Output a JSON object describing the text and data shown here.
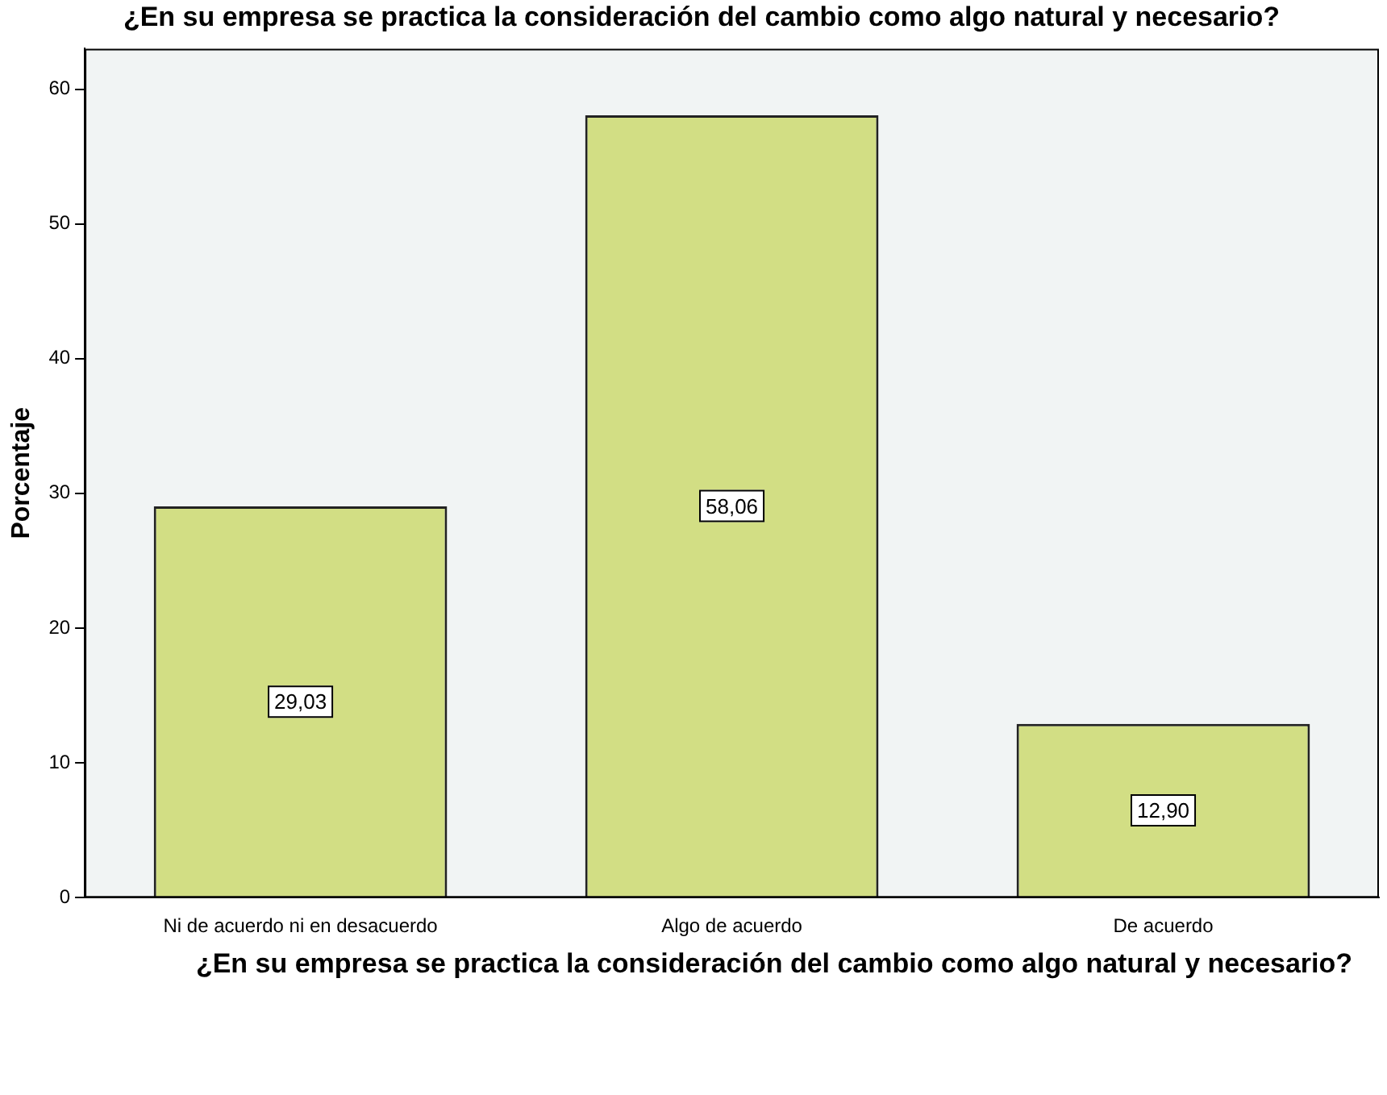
{
  "chart_data": {
    "type": "bar",
    "title": "¿En su empresa se practica la consideración del cambio como algo natural y necesario?",
    "xlabel": "¿En su empresa se practica la consideración del cambio como algo natural y necesario?",
    "ylabel": "Porcentaje",
    "categories": [
      "Ni de acuerdo ni en desacuerdo",
      "Algo de acuerdo",
      "De acuerdo"
    ],
    "values": [
      29.03,
      58.06,
      12.9
    ],
    "value_labels": [
      "29,03",
      "58,06",
      "12,90"
    ],
    "color": "#d2de84",
    "ylim": [
      0,
      63
    ],
    "yticks": [
      0,
      10,
      20,
      30,
      40,
      50,
      60
    ],
    "grid": false,
    "legend": false
  }
}
